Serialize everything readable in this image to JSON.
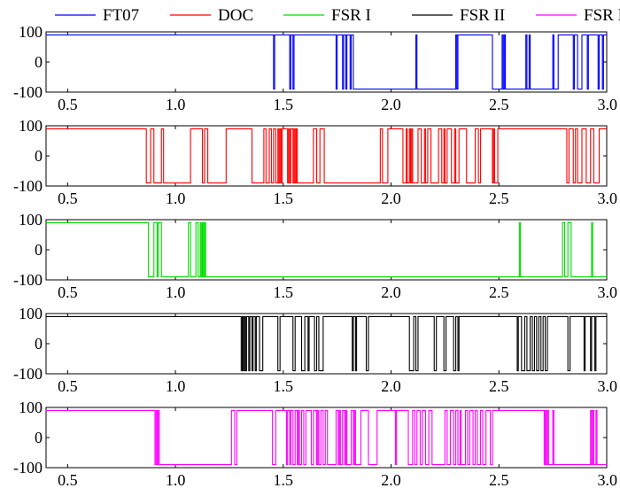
{
  "chart_data": {
    "type": "line",
    "title": "",
    "xlabel": "",
    "ylabel": "",
    "xlim": [
      0.4,
      3.0
    ],
    "ylim": [
      -100,
      100
    ],
    "xticks": [
      "0.5",
      "1.0",
      "1.5",
      "2.0",
      "2.5",
      "3.0"
    ],
    "yticks": [
      "100",
      "0",
      "-100"
    ],
    "legend": {
      "placement": "top",
      "entries": [
        {
          "name": "FT07",
          "color": "#0000ff"
        },
        {
          "name": "DOC",
          "color": "#ff0000"
        },
        {
          "name": "FSR I",
          "color": "#00dd00"
        },
        {
          "name": "FSR II",
          "color": "#000000"
        },
        {
          "name": "FSR III",
          "color": "#ff00ff"
        }
      ]
    },
    "series": [
      {
        "name": "FT07",
        "color": "#0000ff",
        "high": 90,
        "low": -90,
        "initial": "high",
        "switches": [
          1.455,
          1.46,
          1.53,
          1.535,
          1.545,
          1.55,
          1.745,
          1.75,
          1.775,
          1.78,
          1.79,
          1.795,
          1.81,
          1.815,
          1.825,
          2.115,
          2.12,
          2.3,
          2.305,
          2.31,
          2.47,
          2.515,
          2.52,
          2.525,
          2.53,
          2.625,
          2.63,
          2.64,
          2.645,
          2.75,
          2.755,
          2.775,
          2.845,
          2.85,
          2.865,
          2.885,
          2.91,
          2.915,
          2.96,
          2.965,
          2.98,
          2.985
        ]
      },
      {
        "name": "DOC",
        "color": "#ff0000",
        "high": 90,
        "low": -90,
        "initial": "high",
        "switches": [
          0.865,
          0.885,
          0.9,
          0.935,
          0.945,
          1.07,
          1.125,
          1.135,
          1.15,
          1.235,
          1.355,
          1.41,
          1.42,
          1.435,
          1.445,
          1.455,
          1.465,
          1.475,
          1.48,
          1.485,
          1.49,
          1.495,
          1.52,
          1.525,
          1.53,
          1.535,
          1.545,
          1.55,
          1.555,
          1.56,
          1.565,
          1.64,
          1.655,
          1.67,
          1.69,
          1.95,
          1.96,
          1.985,
          2.055,
          2.07,
          2.075,
          2.085,
          2.09,
          2.095,
          2.1,
          2.125,
          2.14,
          2.155,
          2.16,
          2.17,
          2.185,
          2.22,
          2.235,
          2.245,
          2.25,
          2.26,
          2.28,
          2.295,
          2.3,
          2.315,
          2.35,
          2.39,
          2.405,
          2.415,
          2.47,
          2.475,
          2.48,
          2.495,
          2.815,
          2.825,
          2.845,
          2.855,
          2.865,
          2.885,
          2.905,
          2.925,
          2.94,
          2.965
        ]
      },
      {
        "name": "FSR I",
        "color": "#00dd00",
        "high": 90,
        "low": -90,
        "initial": "high",
        "switches": [
          0.875,
          0.9,
          0.915,
          0.92,
          0.935,
          1.06,
          1.07,
          1.095,
          1.105,
          1.115,
          1.12,
          1.125,
          1.13,
          1.135,
          1.14,
          2.595,
          2.6,
          2.795,
          2.805,
          2.82,
          2.835,
          2.93,
          2.935
        ]
      },
      {
        "name": "FSR II",
        "color": "#000000",
        "high": 90,
        "low": -90,
        "initial": "high",
        "switches": [
          1.305,
          1.31,
          1.315,
          1.32,
          1.325,
          1.33,
          1.34,
          1.345,
          1.355,
          1.36,
          1.37,
          1.375,
          1.39,
          1.405,
          1.475,
          1.485,
          1.545,
          1.555,
          1.585,
          1.6,
          1.615,
          1.62,
          1.645,
          1.655,
          1.665,
          1.685,
          1.82,
          1.825,
          1.835,
          1.84,
          1.885,
          1.895,
          2.085,
          2.105,
          2.115,
          2.125,
          2.2,
          2.21,
          2.245,
          2.255,
          2.29,
          2.3,
          2.31,
          2.315,
          2.585,
          2.59,
          2.605,
          2.62,
          2.63,
          2.645,
          2.655,
          2.665,
          2.675,
          2.685,
          2.695,
          2.705,
          2.715,
          2.725,
          2.82,
          2.83,
          2.895,
          2.9,
          2.925,
          2.93,
          2.945,
          2.95
        ]
      },
      {
        "name": "FSR III",
        "color": "#ff00ff",
        "high": 90,
        "low": -90,
        "initial": "high",
        "switches": [
          0.905,
          0.91,
          0.915,
          0.92,
          0.925,
          1.26,
          1.275,
          1.285,
          1.45,
          1.465,
          1.515,
          1.52,
          1.53,
          1.535,
          1.545,
          1.555,
          1.565,
          1.57,
          1.575,
          1.585,
          1.595,
          1.605,
          1.63,
          1.64,
          1.655,
          1.66,
          1.665,
          1.675,
          1.685,
          1.695,
          1.705,
          1.745,
          1.755,
          1.76,
          1.765,
          1.775,
          1.785,
          1.79,
          1.795,
          1.815,
          1.825,
          1.83,
          1.835,
          1.86,
          1.895,
          1.935,
          2.02,
          2.025,
          2.08,
          2.1,
          2.11,
          2.12,
          2.135,
          2.145,
          2.16,
          2.175,
          2.19,
          2.25,
          2.26,
          2.275,
          2.29,
          2.3,
          2.31,
          2.32,
          2.325,
          2.345,
          2.355,
          2.365,
          2.38,
          2.39,
          2.4,
          2.415,
          2.425,
          2.44,
          2.46,
          2.47,
          2.71,
          2.715,
          2.72,
          2.725,
          2.73,
          2.75,
          2.755,
          2.925,
          2.93,
          2.935,
          2.94,
          2.95,
          2.955
        ]
      }
    ]
  }
}
